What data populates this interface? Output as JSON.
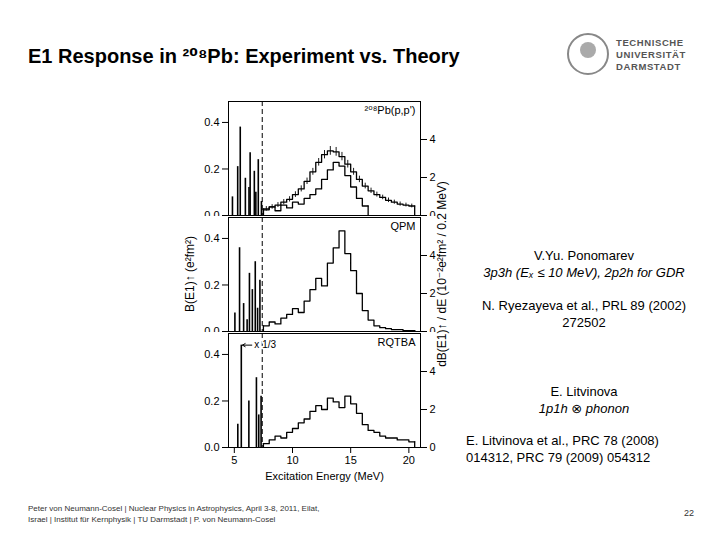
{
  "slide": {
    "title": "E1 Response in ²⁰⁸Pb: Experiment vs. Theory",
    "logo": [
      "TECHNISCHE",
      "UNIVERSITÄT",
      "DARMSTADT"
    ],
    "notes": [
      {
        "author": "V.Yu. Ponomarev",
        "method": "3p3h (Eₓ ≤ 10 MeV), 2p2h for GDR",
        "reference": [
          "N. Ryezayeva et al., PRL 89 (2002)",
          "272502"
        ]
      },
      {
        "author": "E. Litvinova",
        "method": "1p1h ⊗ phonon",
        "reference": [
          "E. Litvinova et al., PRC 78 (2008)",
          "014312, PRC 79 (2009) 054312"
        ]
      }
    ],
    "footer": [
      "Peter von Neumann-Cosel | Nuclear Physics in Astrophysics, April 3-8, 2011, Eilat,",
      "Israel | Institut für Kernphysik | TU Darmstadt | P. von Neumann-Cosel"
    ],
    "page": 22
  },
  "chart_data": [
    {
      "type": "bar",
      "title": "²⁰⁸Pb(p,p')",
      "tick_labels": "y",
      "xlim": [
        4.5,
        21
      ],
      "xticks": [
        5,
        10,
        15,
        20
      ],
      "ylim": [
        0,
        0.49
      ],
      "yticks": [
        {
          "value": 0,
          "label": "0.0"
        },
        {
          "value": 0.2,
          "label": "0.2"
        },
        {
          "value": 0.4,
          "label": "0.4"
        }
      ],
      "y2lim": [
        0,
        6
      ],
      "y2ticks": [
        0,
        2,
        4
      ],
      "vlines": [
        7.4
      ],
      "series": [
        {
          "color": "#000000",
          "x": [
            4.84,
            5.29,
            5.51,
            5.95,
            6.26,
            6.36,
            6.72,
            6.85,
            7.06,
            7.33
          ],
          "values": [
            0.08,
            0.21,
            0.38,
            0.16,
            0.12,
            0.27,
            0.19,
            0.1,
            0.24,
            0.06
          ]
        },
        {
          "type": "line",
          "line_style": "step",
          "axis": "y2",
          "color": "#000000",
          "bins": [
            7.5,
            8,
            8.5,
            9,
            9.5,
            10,
            10.5,
            11,
            11.5,
            12,
            12.5,
            13,
            13.5,
            14,
            14.5,
            15,
            15.5,
            16,
            16.5,
            17,
            17.5,
            18,
            18.5,
            19,
            19.5,
            20,
            20.5
          ],
          "values": [
            0.35,
            0.45,
            0.55,
            0.7,
            0.85,
            1.1,
            1.4,
            1.8,
            2.3,
            2.8,
            3.2,
            3.4,
            3.35,
            3.1,
            2.7,
            2.3,
            1.9,
            1.55,
            1.3,
            1.1,
            0.95,
            0.8,
            0.7,
            0.6,
            0.55,
            0.5
          ],
          "errors": [
            0.12,
            0.12,
            0.13,
            0.14,
            0.14,
            0.15,
            0.16,
            0.17,
            0.18,
            0.2,
            0.22,
            0.23,
            0.23,
            0.22,
            0.2,
            0.18,
            0.17,
            0.15,
            0.14,
            0.13,
            0.12,
            0.12,
            0.11,
            0.11,
            0.1,
            0.1
          ]
        },
        {
          "type": "line",
          "line_style": "step",
          "axis": "y2",
          "color": "#000000",
          "bins": [
            7.5,
            8,
            8.5,
            9,
            9.5,
            10,
            10.5,
            11,
            11.5,
            12,
            12.5,
            13,
            13.5,
            14,
            14.5,
            15,
            15.5,
            16,
            16.5
          ],
          "values": [
            0.3,
            0.45,
            0.25,
            0.55,
            0.4,
            0.7,
            0.6,
            0.9,
            1.1,
            1.4,
            1.9,
            2.4,
            2.8,
            2.6,
            2.1,
            1.5,
            0.9,
            0.5
          ]
        }
      ]
    },
    {
      "type": "bar",
      "title": "QPM",
      "tick_labels": "y",
      "ylabel": "B(E1)↑ (e²fm²)",
      "y2label": "dB(E1)↑ / dE (10⁻²e²fm² / 0.2 MeV)",
      "xlim": [
        4.5,
        21
      ],
      "xticks": [
        5,
        10,
        15,
        20
      ],
      "ylim": [
        0,
        0.49
      ],
      "yticks": [
        {
          "value": 0,
          "label": "0.0"
        },
        {
          "value": 0.2,
          "label": "0.2"
        },
        {
          "value": 0.4,
          "label": "0.4"
        }
      ],
      "y2lim": [
        0,
        6
      ],
      "y2ticks": [
        0,
        2,
        4
      ],
      "vlines": [
        7.4
      ],
      "series": [
        {
          "color": "#000000",
          "x": [
            5.05,
            5.45,
            5.8,
            6.1,
            6.3,
            6.55,
            6.8,
            7.0,
            7.2
          ],
          "values": [
            0.08,
            0.36,
            0.12,
            0.05,
            0.25,
            0.18,
            0.3,
            0.1,
            0.22
          ]
        },
        {
          "type": "line",
          "line_style": "step",
          "axis": "y2",
          "color": "#000000",
          "bins": [
            7.5,
            8,
            8.5,
            9,
            9.5,
            10,
            10.5,
            11,
            11.5,
            12,
            12.5,
            13,
            13.5,
            14,
            14.5,
            15,
            15.5,
            16,
            16.5,
            17,
            17.5,
            18,
            18.5,
            19,
            19.5,
            20,
            20.5
          ],
          "values": [
            0.3,
            0.5,
            0.4,
            0.7,
            0.9,
            1.2,
            1.0,
            1.6,
            2.2,
            2.8,
            2.4,
            3.6,
            4.4,
            5.3,
            4.1,
            3.2,
            2.0,
            1.1,
            0.6,
            0.3,
            0.2,
            0.15,
            0.1,
            0.1,
            0.05,
            0.05
          ]
        }
      ]
    },
    {
      "type": "bar",
      "title": "RQTBA",
      "xlabel": "Excitation Energy (MeV)",
      "xlim": [
        4.5,
        21
      ],
      "xticks": [
        5,
        10,
        15,
        20
      ],
      "ylim": [
        0,
        0.49
      ],
      "yticks": [
        {
          "value": 0,
          "label": "0.0"
        },
        {
          "value": 0.2,
          "label": "0.2"
        },
        {
          "value": 0.4,
          "label": "0.4"
        }
      ],
      "y2lim": [
        0,
        6
      ],
      "y2ticks": [
        0,
        2,
        4
      ],
      "vlines": [
        7.4
      ],
      "annotations": [
        {
          "text": "x 1/3",
          "x": 5.6
        }
      ],
      "series": [
        {
          "color": "#000000",
          "x": [
            5.3,
            5.6,
            6.25,
            6.9,
            7.1,
            7.3
          ],
          "values": [
            0.1,
            0.44,
            0.2,
            0.3,
            0.14,
            0.22
          ]
        },
        {
          "type": "line",
          "line_style": "step",
          "axis": "y2",
          "color": "#000000",
          "bins": [
            7.5,
            8,
            8.5,
            9,
            9.5,
            10,
            10.5,
            11,
            11.5,
            12,
            12.5,
            13,
            13.5,
            14,
            14.5,
            15,
            15.5,
            16,
            16.5,
            17,
            17.5,
            18,
            18.5,
            19,
            19.5,
            20,
            20.5
          ],
          "values": [
            0.2,
            0.4,
            0.6,
            0.5,
            0.8,
            1.0,
            1.3,
            1.5,
            1.9,
            2.2,
            2.0,
            2.6,
            2.4,
            2.1,
            2.7,
            2.3,
            1.8,
            1.2,
            0.9,
            0.8,
            0.6,
            0.5,
            0.5,
            0.4,
            0.4,
            0.3
          ]
        }
      ]
    }
  ]
}
